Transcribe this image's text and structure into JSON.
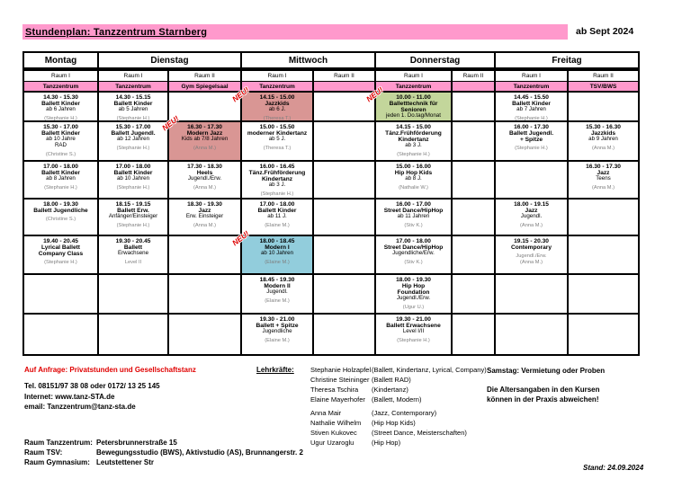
{
  "header": {
    "title": "Stundenplan: Tanzzentrum Starnberg",
    "effective": "ab Sept 2024"
  },
  "colors": {
    "pink": "#ff99cc",
    "rose": "#d99694",
    "green": "#c3d69b",
    "blue": "#92cddc",
    "red_text": "#e00000",
    "neu_red": "#dd0000"
  },
  "neu_label": "NEU!",
  "table": {
    "days": [
      {
        "label": "Montag",
        "span": 1
      },
      {
        "label": "Dienstag",
        "span": 2
      },
      {
        "label": "Mittwoch",
        "span": 2
      },
      {
        "label": "Donnerstag",
        "span": 2
      },
      {
        "label": "Freitag",
        "span": 2
      }
    ],
    "room_headers": [
      {
        "raum": "Raum I",
        "name": "Tanzzentrum"
      },
      {
        "raum": "Raum I",
        "name": "Tanzzentrum"
      },
      {
        "raum": "Raum II",
        "name": "Gym Spiegelsaal"
      },
      {
        "raum": "Raum I",
        "name": "Tanzzentrum"
      },
      {
        "raum": "Raum II",
        "name": ""
      },
      {
        "raum": "Raum I",
        "name": "Tanzzentrum"
      },
      {
        "raum": "Raum II",
        "name": ""
      },
      {
        "raum": "Raum I",
        "name": "Tanzzentrum"
      },
      {
        "raum": "Raum II",
        "name": "TSV/BWS"
      }
    ],
    "cells": [
      {
        "c": 0,
        "r": 0,
        "lines": [
          {
            "t": "14.30 - 15.30",
            "s": "b"
          },
          {
            "t": "Ballett Kinder",
            "s": "b"
          },
          {
            "t": "ab 6 Jahren",
            "s": "n"
          },
          {
            "t": "(Stephanie H.)",
            "s": "g"
          }
        ]
      },
      {
        "c": 0,
        "r": 1,
        "lines": [
          {
            "t": "15.30 - 17.00",
            "s": "b"
          },
          {
            "t": "Ballett Kinder",
            "s": "b"
          },
          {
            "t": "ab 10 Jahre",
            "s": "n"
          },
          {
            "t": "RAD",
            "s": "n"
          },
          {
            "t": "(Christine S.)",
            "s": "g"
          }
        ]
      },
      {
        "c": 0,
        "r": 2,
        "lines": [
          {
            "t": "17.00 - 18.00",
            "s": "b"
          },
          {
            "t": "Ballett Kinder",
            "s": "b"
          },
          {
            "t": "ab 8 Jahren",
            "s": "n"
          },
          {
            "t": "(Stephanie H.)",
            "s": "g"
          }
        ]
      },
      {
        "c": 0,
        "r": 3,
        "lines": [
          {
            "t": "18.00 - 19.30",
            "s": "b"
          },
          {
            "t": "Ballett Jugendliche",
            "s": "b"
          },
          {
            "t": "(Christine S.)",
            "s": "g"
          }
        ]
      },
      {
        "c": 0,
        "r": 4,
        "lines": [
          {
            "t": "19.40 - 20.45",
            "s": "b"
          },
          {
            "t": "Lyrical Ballett",
            "s": "b"
          },
          {
            "t": "Company Class",
            "s": "b"
          },
          {
            "t": "(Stephanie H.)",
            "s": "g"
          }
        ]
      },
      {
        "c": 1,
        "r": 0,
        "lines": [
          {
            "t": "14.30 - 15.15",
            "s": "b"
          },
          {
            "t": "Ballett Kinder",
            "s": "b"
          },
          {
            "t": "ab 5 Jahren",
            "s": "n"
          },
          {
            "t": "(Stephanie H.)",
            "s": "g"
          }
        ]
      },
      {
        "c": 1,
        "r": 1,
        "neu": "tr",
        "lines": [
          {
            "t": "15.30 - 17.00",
            "s": "b"
          },
          {
            "t": "Ballett Jugendl.",
            "s": "b"
          },
          {
            "t": "ab 12 Jahren",
            "s": "n"
          },
          {
            "t": "(Stephanie H.)",
            "s": "g"
          }
        ]
      },
      {
        "c": 1,
        "r": 2,
        "lines": [
          {
            "t": "17.00 - 18.00",
            "s": "b"
          },
          {
            "t": "Ballett Kinder",
            "s": "b"
          },
          {
            "t": "ab 10 Jahren",
            "s": "n"
          },
          {
            "t": "(Stephanie H.)",
            "s": "g"
          }
        ]
      },
      {
        "c": 1,
        "r": 3,
        "lines": [
          {
            "t": "18.15 - 19.15",
            "s": "b"
          },
          {
            "t": "Ballett Erw.",
            "s": "b"
          },
          {
            "t": "Anfänger/Einsteiger",
            "s": "n"
          },
          {
            "t": "(Stephanie H.)",
            "s": "g"
          }
        ]
      },
      {
        "c": 1,
        "r": 4,
        "lines": [
          {
            "t": "19.30 - 20.45",
            "s": "b"
          },
          {
            "t": "Ballett",
            "s": "b"
          },
          {
            "t": "Erwachsene",
            "s": "n"
          },
          {
            "t": "Level II",
            "s": "g"
          }
        ]
      },
      {
        "c": 2,
        "r": 1,
        "bg": "rose",
        "lines": [
          {
            "t": "16.30 - 17.30",
            "s": "b"
          },
          {
            "t": "Modern Jazz",
            "s": "b"
          },
          {
            "t": "Kids ab 7/8 Jahren",
            "s": "n"
          },
          {
            "t": "(Anna M.)",
            "s": "g"
          }
        ]
      },
      {
        "c": 2,
        "r": 2,
        "lines": [
          {
            "t": "17.30 - 18.30",
            "s": "b"
          },
          {
            "t": "Heels",
            "s": "b"
          },
          {
            "t": "Jugendl./Erw.",
            "s": "n"
          },
          {
            "t": "(Anna M.)",
            "s": "g"
          }
        ]
      },
      {
        "c": 2,
        "r": 3,
        "lines": [
          {
            "t": "18.30 - 19.30",
            "s": "b"
          },
          {
            "t": "Jazz",
            "s": "b"
          },
          {
            "t": "Erw. Einsteiger",
            "s": "n"
          },
          {
            "t": "(Anna M.)",
            "s": "g"
          }
        ]
      },
      {
        "c": 3,
        "r": 0,
        "bg": "rose",
        "neu": "tl",
        "lines": [
          {
            "t": "14.15 - 15.00",
            "s": "b"
          },
          {
            "t": "Jazzkids",
            "s": "b"
          },
          {
            "t": "ab 6 J.",
            "s": "n"
          },
          {
            "t": "(Theresa T.)",
            "s": "g"
          }
        ]
      },
      {
        "c": 3,
        "r": 1,
        "lines": [
          {
            "t": "15.00 - 15.50",
            "s": "b"
          },
          {
            "t": "moderner Kindertanz",
            "s": "b"
          },
          {
            "t": "ab 5 J.",
            "s": "n"
          },
          {
            "t": "(Theresa T.)",
            "s": "g"
          }
        ]
      },
      {
        "c": 3,
        "r": 2,
        "lines": [
          {
            "t": "16.00 - 16.45",
            "s": "b"
          },
          {
            "t": "Tänz.Frühförderung",
            "s": "b"
          },
          {
            "t": "Kindertanz",
            "s": "b"
          },
          {
            "t": "ab 3 J.",
            "s": "n"
          },
          {
            "t": "(Stephanie H.)",
            "s": "g"
          }
        ]
      },
      {
        "c": 3,
        "r": 3,
        "lines": [
          {
            "t": "17.00 - 18.00",
            "s": "b"
          },
          {
            "t": "Ballett Kinder",
            "s": "b"
          },
          {
            "t": "ab 11 J.",
            "s": "n"
          },
          {
            "t": "(Elaine M.)",
            "s": "g"
          }
        ]
      },
      {
        "c": 3,
        "r": 4,
        "bg": "blue",
        "neu": "tl",
        "lines": [
          {
            "t": "18.00 - 18.45",
            "s": "b"
          },
          {
            "t": "Modern I",
            "s": "b"
          },
          {
            "t": "ab 10 Jahren",
            "s": "n"
          },
          {
            "t": "(Elaine M.)",
            "s": "g"
          }
        ]
      },
      {
        "c": 3,
        "r": 5,
        "lines": [
          {
            "t": "18.45 - 19.30",
            "s": "b"
          },
          {
            "t": "Modern II",
            "s": "b"
          },
          {
            "t": "Jugendl.",
            "s": "n"
          },
          {
            "t": "(Elaine M.)",
            "s": "g"
          }
        ]
      },
      {
        "c": 3,
        "r": 6,
        "lines": [
          {
            "t": "19.30 - 21.00",
            "s": "b"
          },
          {
            "t": "Ballett + Spitze",
            "s": "b"
          },
          {
            "t": "Jugendliche",
            "s": "n"
          },
          {
            "t": "(Elaine M.)",
            "s": "g"
          }
        ]
      },
      {
        "c": 5,
        "r": 0,
        "bg": "green",
        "neu": "tl",
        "lines": [
          {
            "t": "10.00 - 11.00",
            "s": "b"
          },
          {
            "t": "Balletttechnik für",
            "s": "b"
          },
          {
            "t": "Senioren",
            "s": "b"
          },
          {
            "t": "jeden 1. Do.tag/Monat",
            "s": "n"
          },
          {
            "t": "(Stephanie H.)",
            "s": "g"
          }
        ]
      },
      {
        "c": 5,
        "r": 1,
        "lines": [
          {
            "t": "14.15 - 15.00",
            "s": "b"
          },
          {
            "t": "Tänz.Frühförderung",
            "s": "b"
          },
          {
            "t": "Kindertanz",
            "s": "b"
          },
          {
            "t": "ab 3 J.",
            "s": "n"
          },
          {
            "t": "(Stephanie H.)",
            "s": "g"
          }
        ]
      },
      {
        "c": 5,
        "r": 2,
        "lines": [
          {
            "t": "15.00 - 16.00",
            "s": "b"
          },
          {
            "t": "Hip Hop Kids",
            "s": "b"
          },
          {
            "t": "ab 8 J.",
            "s": "n"
          },
          {
            "t": "(Nathalie W.)",
            "s": "g"
          }
        ]
      },
      {
        "c": 5,
        "r": 3,
        "lines": [
          {
            "t": "16.00 - 17.00",
            "s": "b"
          },
          {
            "t": "Street Dance/HipHop",
            "s": "b"
          },
          {
            "t": "ab 11 Jahren",
            "s": "n"
          },
          {
            "t": "(Stiv K.)",
            "s": "g"
          }
        ]
      },
      {
        "c": 5,
        "r": 4,
        "lines": [
          {
            "t": "17.00 - 18.00",
            "s": "b"
          },
          {
            "t": "Street Dance/HipHop",
            "s": "b"
          },
          {
            "t": "Jugendliche/Erw.",
            "s": "n"
          },
          {
            "t": "(Stiv K.)",
            "s": "g"
          }
        ]
      },
      {
        "c": 5,
        "r": 5,
        "lines": [
          {
            "t": "18.00 - 19.30",
            "s": "b"
          },
          {
            "t": "Hip Hop",
            "s": "b"
          },
          {
            "t": "Foundation",
            "s": "b"
          },
          {
            "t": "Jugendl./Erw.",
            "s": "n"
          },
          {
            "t": "(Ugur U.)",
            "s": "g"
          }
        ]
      },
      {
        "c": 5,
        "r": 6,
        "lines": [
          {
            "t": "19.30 - 21.00",
            "s": "b"
          },
          {
            "t": "Ballett Erwachsene",
            "s": "b"
          },
          {
            "t": "Level I/II",
            "s": "n"
          },
          {
            "t": "(Stephanie H.)",
            "s": "g"
          }
        ]
      },
      {
        "c": 7,
        "r": 0,
        "lines": [
          {
            "t": "14.45 - 15.50",
            "s": "b"
          },
          {
            "t": "Ballett Kinder",
            "s": "b"
          },
          {
            "t": "ab 7 Jahren",
            "s": "n"
          },
          {
            "t": "(Stephanie H.)",
            "s": "g"
          }
        ]
      },
      {
        "c": 7,
        "r": 1,
        "lines": [
          {
            "t": "16.00 - 17.30",
            "s": "b"
          },
          {
            "t": "Ballett Jugendl.",
            "s": "b"
          },
          {
            "t": "+ Spitze",
            "s": "b"
          },
          {
            "t": "(Stephanie H.)",
            "s": "g"
          }
        ]
      },
      {
        "c": 7,
        "r": 3,
        "lines": [
          {
            "t": "18.00 - 19.15",
            "s": "b"
          },
          {
            "t": "Jazz",
            "s": "b"
          },
          {
            "t": "Jugendl.",
            "s": "n"
          },
          {
            "t": "(Anna M.)",
            "s": "g"
          }
        ]
      },
      {
        "c": 7,
        "r": 4,
        "lines": [
          {
            "t": "19.15 - 20.30",
            "s": "b"
          },
          {
            "t": "Contemporary",
            "s": "b"
          },
          {
            "t": "Jugendl./Erw.",
            "s": "g"
          },
          {
            "t": "(Anna M.)",
            "s": "g"
          }
        ]
      },
      {
        "c": 8,
        "r": 1,
        "lines": [
          {
            "t": "15.30 - 16.30",
            "s": "b"
          },
          {
            "t": "Jazzkids",
            "s": "b"
          },
          {
            "t": "ab 9 Jahren",
            "s": "n"
          },
          {
            "t": "(Anna M.)",
            "s": "g"
          }
        ]
      },
      {
        "c": 8,
        "r": 2,
        "lines": [
          {
            "t": "16.30 - 17.30",
            "s": "b"
          },
          {
            "t": "Jazz",
            "s": "b"
          },
          {
            "t": "Teens",
            "s": "n"
          },
          {
            "t": "(Anna M.)",
            "s": "g"
          }
        ]
      }
    ]
  },
  "footer": {
    "request_label": "Auf Anfrage:  Privatstunden und Gesellschaftstanz",
    "phone": "Tel. 08151/97 38 08 oder 0172/ 13 25 145",
    "internet": "Internet: www.tanz-STA.de",
    "email": "email: Tanzzentrum@tanz-sta.de",
    "teachers_label": "Lehrkräfte:",
    "teachers": [
      {
        "name": "Stephanie Holzapfel",
        "skills": "(Ballett, Kindertanz, Lyrical, Company)",
        "gap": false
      },
      {
        "name": "Christine Steininger",
        "skills": "(Ballett RAD)",
        "gap": false
      },
      {
        "name": "Theresa Tschira",
        "skills": "(Kindertanz)",
        "gap": false
      },
      {
        "name": "Elaine Mayerhofer",
        "skills": "(Ballett, Modern)",
        "gap": false
      },
      {
        "name": "Anna Mair",
        "skills": "(Jazz, Contemporary)",
        "gap": true
      },
      {
        "name": "Nathalie Wilhelm",
        "skills": "(Hip Hop Kids)",
        "gap": false
      },
      {
        "name": "Stiven Kukovec",
        "skills": "(Street Dance, Meisterschaften)",
        "gap": false
      },
      {
        "name": "Ugur Uzaroglu",
        "skills": "(Hip Hop)",
        "gap": false
      }
    ],
    "saturday_note": "Samstag: Vermietung oder Proben",
    "age_note_line1": "Die Altersangaben in den Kursen",
    "age_note_line2": "können in der Praxis abweichen!",
    "rooms": [
      {
        "label": "Raum Tanzzentrum:",
        "value": "Petersbrunnerstraße 15"
      },
      {
        "label": "Raum TSV:",
        "value": "Bewegungsstudio (BWS), Aktivstudio (AS), Brunnangerstr. 2"
      },
      {
        "label": "Raum Gymnasium:",
        "value": "Leutstettener Str"
      }
    ],
    "stand": "Stand: 24.09.2024"
  }
}
